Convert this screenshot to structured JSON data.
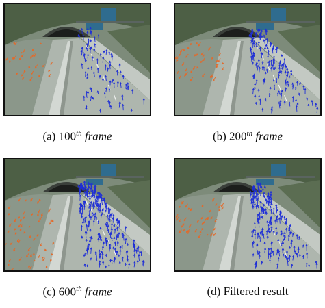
{
  "figure": {
    "panels": [
      {
        "id": "a",
        "seed": 11,
        "blue_arrows": 90,
        "orange_arrows": 28,
        "caption": {
          "tag": "(a)",
          "num": "100",
          "sup": "th",
          "word": "frame",
          "plain": ""
        }
      },
      {
        "id": "b",
        "seed": 23,
        "blue_arrows": 150,
        "orange_arrows": 40,
        "caption": {
          "tag": "(b)",
          "num": "200",
          "sup": "th",
          "word": "frame",
          "plain": ""
        }
      },
      {
        "id": "c",
        "seed": 37,
        "blue_arrows": 260,
        "orange_arrows": 60,
        "caption": {
          "tag": "(c)",
          "num": "600",
          "sup": "th",
          "word": "frame",
          "plain": ""
        }
      },
      {
        "id": "d",
        "seed": 53,
        "blue_arrows": 210,
        "orange_arrows": 45,
        "caption": {
          "tag": "(d)",
          "num": "",
          "sup": "",
          "word": "",
          "plain": "Filtered result"
        }
      }
    ],
    "colors": {
      "blue_arrow": "#1f2fd6",
      "orange_arrow": "#e36a2a",
      "road": "#aeb6ae",
      "vegetation": "#4d5f45",
      "sign": "#2f6c8f"
    }
  }
}
